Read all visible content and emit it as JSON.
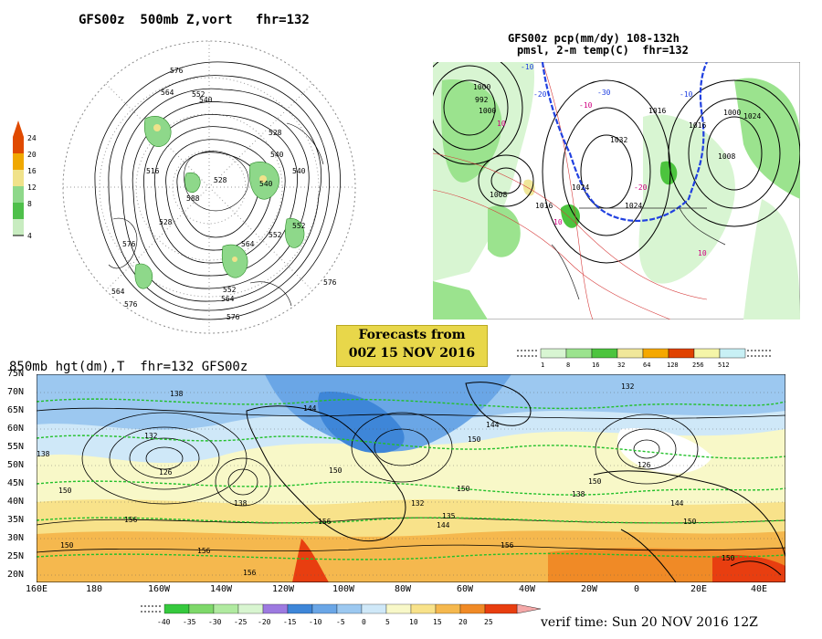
{
  "panel_500mb": {
    "title": "GFS00z  500mb Z,vort   fhr=132",
    "colorbar": {
      "labels": [
        "24",
        "20",
        "16",
        "12",
        "8",
        "4"
      ],
      "colors": [
        "#e04a00",
        "#f0a800",
        "#f0e28a",
        "#8ed88a",
        "#4ec04a",
        "#c8ecc0"
      ]
    },
    "contour_labels": [
      "576",
      "564",
      "552",
      "540",
      "516",
      "528",
      "528",
      "540",
      "552",
      "564",
      "576",
      "576",
      "564",
      "552",
      "528",
      "540",
      "576",
      "576",
      "564",
      "588",
      "552",
      "540"
    ]
  },
  "panel_pcp": {
    "title_line1": "GFS00z pcp(mm/dy) 108-132h",
    "title_line2": "pmsl, 2-m temp(C)  fhr=132",
    "colorbar": {
      "labels": [
        "1",
        "8",
        "16",
        "32",
        "64",
        "128",
        "256",
        "512"
      ],
      "colors": [
        "#d8f5d2",
        "#9be38e",
        "#4cc43e",
        "#f0e79a",
        "#f5a800",
        "#e04200",
        "#f5f5a8",
        "#c8f0f5"
      ]
    },
    "isobar_labels": [
      "1000",
      "992",
      "1000",
      "1008",
      "1016",
      "1024",
      "1032",
      "1024",
      "1016",
      "1008",
      "1000",
      "1016",
      "1024"
    ],
    "temp_labels": [
      "-10",
      "-20",
      "-30",
      "-10",
      "10",
      "10",
      "-20",
      "10",
      "-10"
    ]
  },
  "forecast_box": {
    "line1": "Forecasts from",
    "line2": "00Z 15 NOV 2016"
  },
  "panel_850mb": {
    "title": "850mb hgt(dm),T  fhr=132 GFS00z",
    "lat_labels": [
      "75N",
      "70N",
      "65N",
      "60N",
      "55N",
      "50N",
      "45N",
      "40N",
      "35N",
      "30N",
      "25N",
      "20N"
    ],
    "lon_labels": [
      "160E",
      "180",
      "160W",
      "140W",
      "120W",
      "100W",
      "80W",
      "60W",
      "40W",
      "20W",
      "0",
      "20E",
      "40E"
    ],
    "height_labels": [
      "138",
      "144",
      "144",
      "132",
      "132",
      "126",
      "138",
      "150",
      "156",
      "150",
      "156",
      "150",
      "138",
      "132",
      "135",
      "144",
      "156",
      "150",
      "150",
      "156",
      "126",
      "138",
      "144",
      "150",
      "150",
      "156",
      "150"
    ],
    "colorbar": {
      "labels": [
        "-40",
        "-35",
        "-30",
        "-25",
        "-20",
        "-15",
        "-10",
        "-5",
        "0",
        "5",
        "10",
        "15",
        "20",
        "25"
      ],
      "colors": [
        "#36c93e",
        "#7ed86a",
        "#b0eaa0",
        "#d8f5d0",
        "#9d7ae0",
        "#3e86d8",
        "#6aa6e6",
        "#9cc8f0",
        "#cfe8f8",
        "#f8f8c8",
        "#f8e28a",
        "#f5b84e",
        "#f08a26",
        "#e83e10"
      ]
    }
  },
  "verif_time": "verif time: Sun 20 NOV 2016 12Z"
}
